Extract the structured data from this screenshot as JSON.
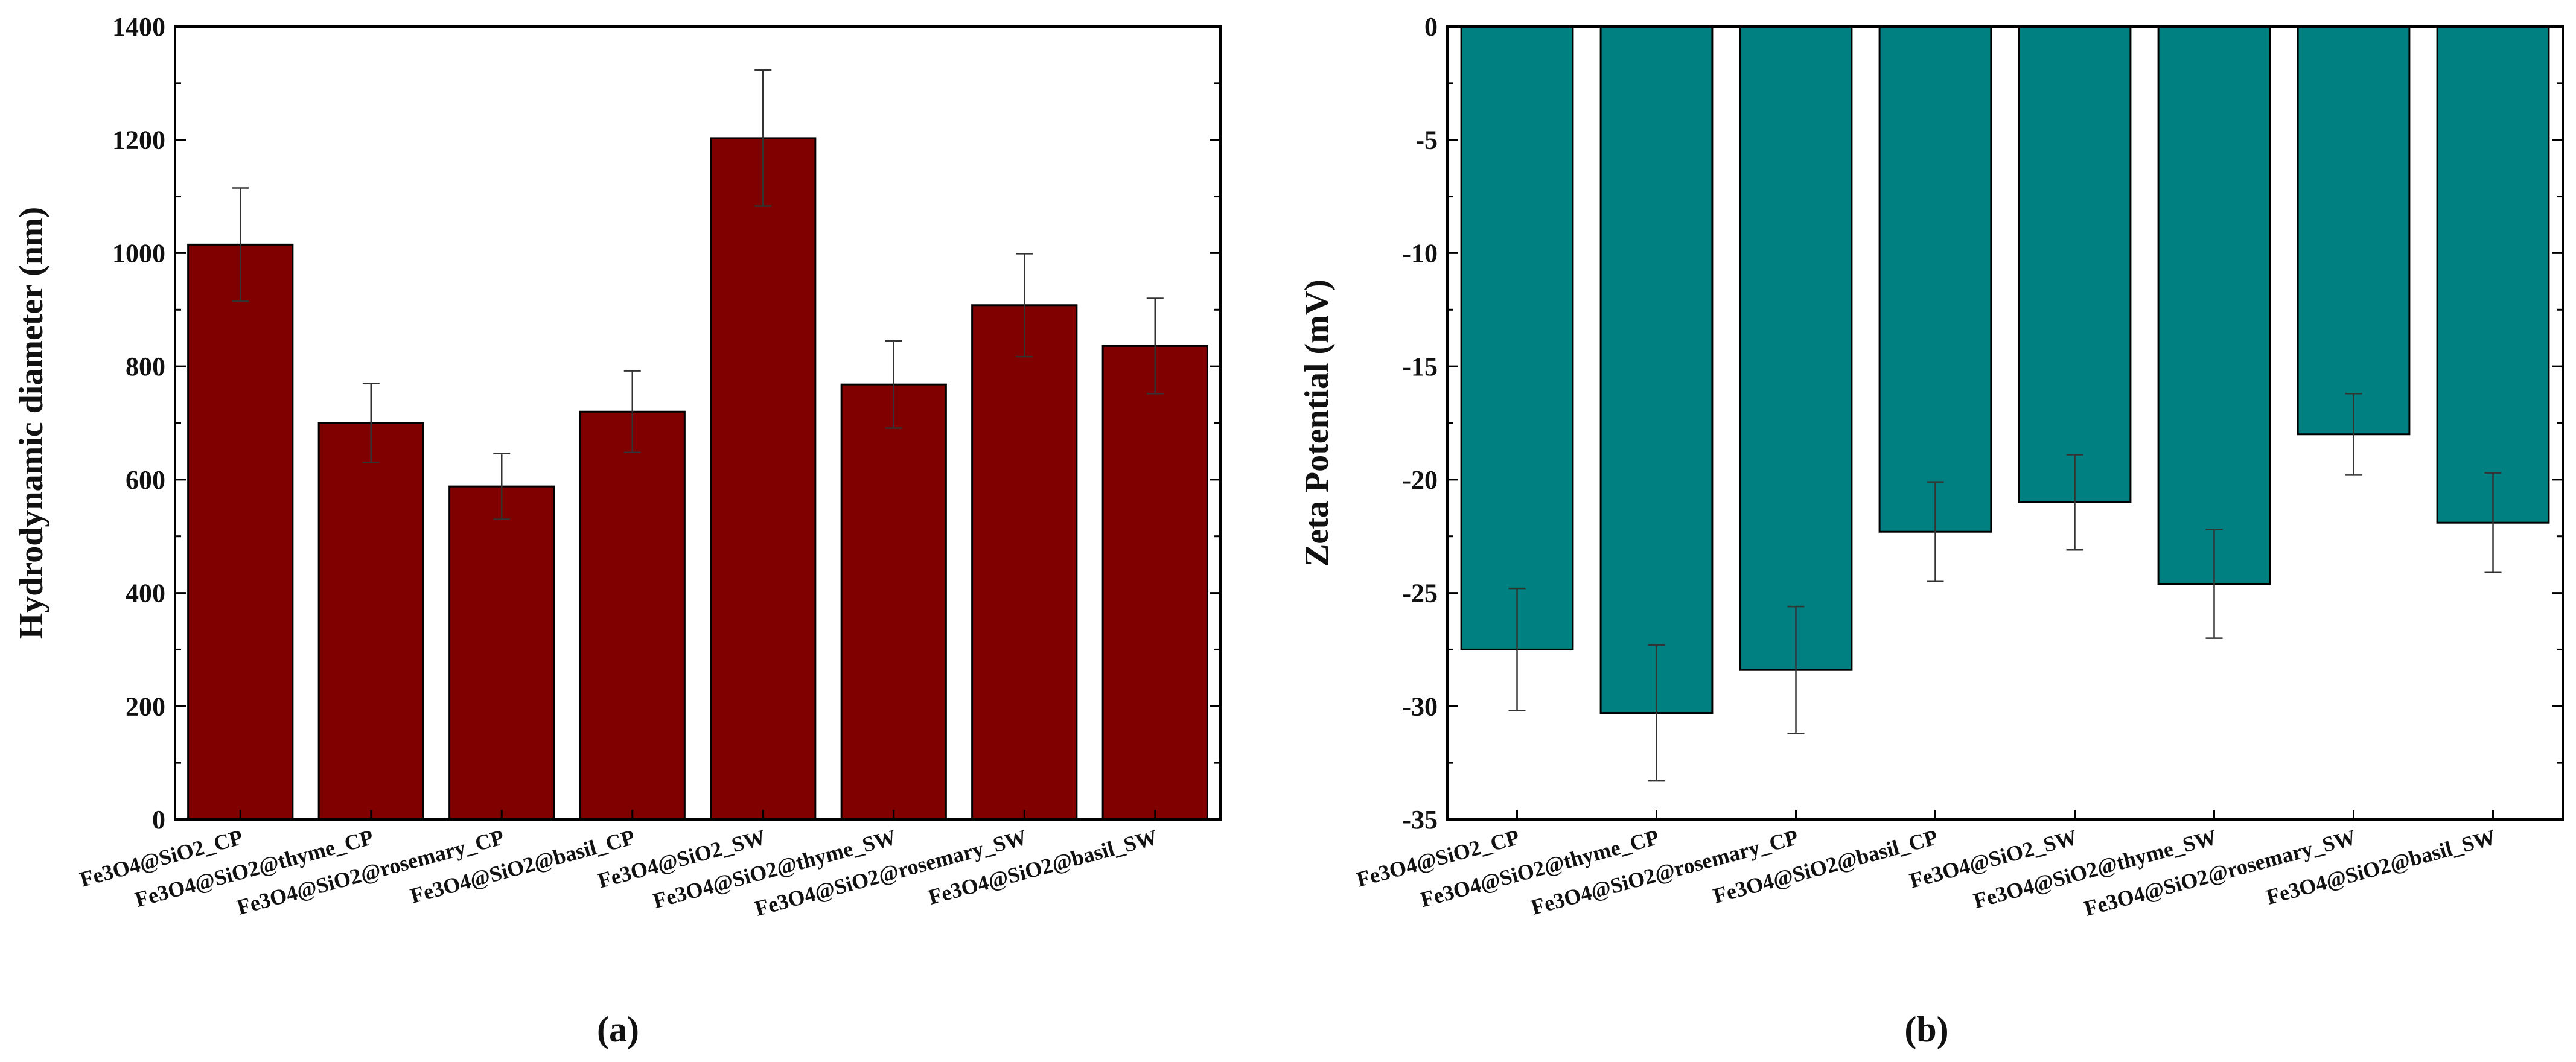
{
  "chart_data": [
    {
      "type": "bar",
      "panel_label": "(a)",
      "title": "",
      "xlabel": "",
      "ylabel": "Hydrodynamic diameter (nm)",
      "ylim": [
        0,
        1400
      ],
      "yticks": [
        0,
        200,
        400,
        600,
        800,
        1000,
        1200,
        1400
      ],
      "ytick_labels": [
        "0",
        "200",
        "400",
        "600",
        "800",
        "1000",
        "1200",
        "1400"
      ],
      "bar_color": "#800000",
      "categories": [
        "Fe3O4@SiO2_CP",
        "Fe3O4@SiO2@thyme_CP",
        "Fe3O4@SiO2@rosemary_CP",
        "Fe3O4@SiO2@basil_CP",
        "Fe3O4@SiO2_SW",
        "Fe3O4@SiO2@thyme_SW",
        "Fe3O4@SiO2@rosemary_SW",
        "Fe3O4@SiO2@basil_SW"
      ],
      "values": [
        1015,
        700,
        588,
        720,
        1203,
        768,
        908,
        836
      ],
      "errors": [
        100,
        70,
        58,
        72,
        120,
        77,
        91,
        84
      ]
    },
    {
      "type": "bar",
      "panel_label": "(b)",
      "title": "",
      "xlabel": "",
      "ylabel": "Zeta Potential (mV)",
      "ylim": [
        -35,
        0
      ],
      "yticks": [
        0,
        -5,
        -10,
        -15,
        -20,
        -25,
        -30,
        -35
      ],
      "ytick_labels": [
        "0",
        "-5",
        "-10",
        "-15",
        "-20",
        "-25",
        "-30",
        "-35"
      ],
      "bar_color": "#008080",
      "categories": [
        "Fe3O4@SiO2_CP",
        "Fe3O4@SiO2@thyme_CP",
        "Fe3O4@SiO2@rosemary_CP",
        "Fe3O4@SiO2@basil_CP",
        "Fe3O4@SiO2_SW",
        "Fe3O4@SiO2@thyme_SW",
        "Fe3O4@SiO2@rosemary_SW",
        "Fe3O4@SiO2@basil_SW"
      ],
      "values": [
        -27.5,
        -30.3,
        -28.4,
        -22.3,
        -21.0,
        -24.6,
        -18.0,
        -21.9
      ],
      "errors": [
        2.7,
        3.0,
        2.8,
        2.2,
        2.1,
        2.4,
        1.8,
        2.2
      ]
    }
  ]
}
